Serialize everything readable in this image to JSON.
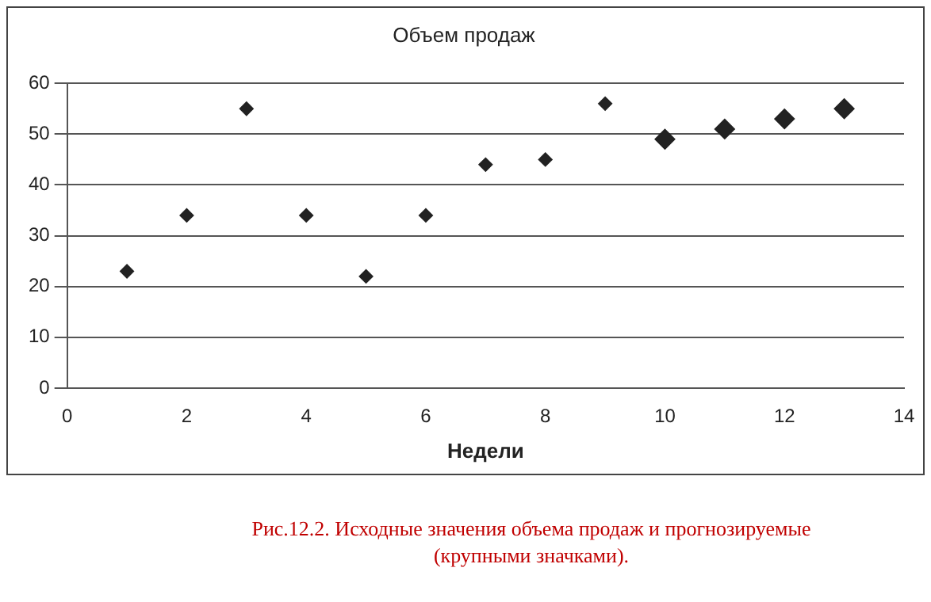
{
  "chart_data": {
    "type": "scatter",
    "title": "Объем продаж",
    "xlabel": "Недели",
    "series": [
      {
        "color": "#222222",
        "x": [
          1,
          2,
          3,
          4,
          5,
          6,
          7,
          8,
          9
        ],
        "values": [
          23,
          34,
          55,
          34,
          22,
          34,
          44,
          45,
          56
        ]
      },
      {
        "color": "#222222",
        "x": [
          10,
          11,
          12,
          13
        ],
        "values": [
          49,
          51,
          53,
          55
        ]
      }
    ],
    "xlim": [
      0,
      14
    ],
    "xticks": [
      0,
      2,
      4,
      6,
      8,
      10,
      12,
      14
    ],
    "ylim": [
      0,
      60
    ],
    "yticks": [
      0,
      10,
      20,
      30,
      40,
      50,
      60
    ],
    "grid": "y",
    "legend": false,
    "marker": "diamond",
    "annotations": [
      "Рис.12.2.  Исходные значения объема продаж и прогнозируемые (крупными значками)."
    ]
  }
}
